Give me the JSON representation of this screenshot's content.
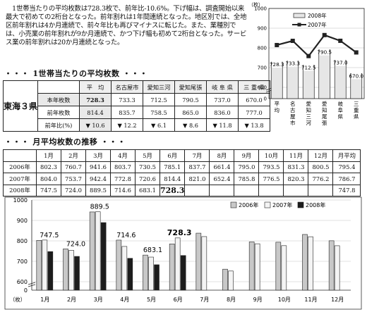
{
  "intro": {
    "text": "　1世帯当たりの平均枚数は728.3枚で、前年比-10.6%。下げ幅は、調査開始以来最大で初めての2桁台となった。前年割れは1年間連続となった。地区別では、全地区前年割れは4か月連続で、前々年比も再びマイナスに転じた。また、業種別では、小売業の前年割れが9か月連続で、かつ下げ幅も初めて2桁台となった。サービス業の前年割れは20か月連続となった。"
  },
  "section1": {
    "dots_left": "・・・",
    "title": "1世帯当たりの平均枚数",
    "dots_right": "・・・"
  },
  "section2": {
    "dots_left": "・・・",
    "title": "月平均枚数の推移",
    "dots_right": "・・・"
  },
  "table1": {
    "pref_label": "東海３県",
    "headers": [
      "平　均",
      "名古屋市",
      "愛知三河",
      "愛知尾張",
      "岐 阜 県",
      "三 重 県"
    ],
    "rows": [
      {
        "label": "本年枚数",
        "values": [
          "728.3",
          "733.3",
          "712.5",
          "790.5",
          "737.0",
          "670.0"
        ]
      },
      {
        "label": "前年枚数",
        "values": [
          "814.4",
          "835.7",
          "758.5",
          "865.0",
          "836.0",
          "777.0"
        ]
      },
      {
        "label": "前年比(%)",
        "values": [
          "▼ 10.6",
          "▼ 12.2",
          "▼ 6.1",
          "▼ 8.6",
          "▼ 11.8",
          "▼ 13.8"
        ]
      }
    ]
  },
  "table2": {
    "headers": [
      "1月",
      "2月",
      "3月",
      "4月",
      "5月",
      "6月",
      "7月",
      "8月",
      "9月",
      "10月",
      "11月",
      "12月",
      "月平均"
    ],
    "rows": [
      {
        "label": "2006年",
        "values": [
          "802.3",
          "760.7",
          "941.6",
          "803.7",
          "730.5",
          "785.1",
          "837.7",
          "661.4",
          "795.0",
          "793.5",
          "831.3",
          "800.5",
          "795.4"
        ]
      },
      {
        "label": "2007年",
        "values": [
          "804.0",
          "753.7",
          "942.4",
          "772.8",
          "720.6",
          "814.4",
          "821.0",
          "652.4",
          "785.8",
          "776.5",
          "820.3",
          "776.2",
          "786.7"
        ]
      },
      {
        "label": "2008年",
        "values": [
          "747.5",
          "724.0",
          "889.5",
          "714.6",
          "683.1",
          "728.3",
          "",
          "",
          "",
          "",
          "",
          "",
          "747.8"
        ]
      }
    ]
  },
  "chart_data": [
    {
      "type": "bar",
      "ylabel": "（枚）",
      "ylim": [
        0,
        1000
      ],
      "yticks": [
        "0",
        "600",
        "700",
        "800",
        "900",
        "1000"
      ],
      "axis_break": true,
      "categories": [
        "平均",
        "名古屋市",
        "愛知三河",
        "愛知尾張",
        "岐阜県",
        "三重県"
      ],
      "series": [
        {
          "name": "2008年",
          "kind": "bar",
          "values": [
            728.3,
            733.3,
            712.5,
            790.5,
            737.0,
            670.0
          ]
        },
        {
          "name": "2007年",
          "kind": "line",
          "values": [
            814.4,
            835.7,
            758.5,
            865.0,
            836.0,
            777.0
          ]
        }
      ],
      "data_labels": [
        "728.3",
        "733.3",
        "712.5",
        "790.5",
        "737.0",
        "670.0"
      ],
      "legend_position": "top-right",
      "colors": {
        "bar": "#e6e6e6",
        "bar_edge": "#222222",
        "line": "#222222"
      }
    },
    {
      "type": "bar",
      "ylabel": "（枚）",
      "ylim": [
        600,
        1000
      ],
      "yticks": [
        "0",
        "600",
        "700",
        "800",
        "900",
        "1000"
      ],
      "axis_break": true,
      "categories": [
        "1月",
        "2月",
        "3月",
        "4月",
        "5月",
        "6月",
        "7月",
        "8月",
        "9月",
        "10月",
        "11月",
        "12月"
      ],
      "series": [
        {
          "name": "2006年",
          "values": [
            802.3,
            760.7,
            941.6,
            803.7,
            730.5,
            785.1,
            837.7,
            661.4,
            795.0,
            793.5,
            831.3,
            800.5
          ]
        },
        {
          "name": "2007年",
          "values": [
            804.0,
            753.7,
            942.4,
            772.8,
            720.6,
            814.4,
            821.0,
            652.4,
            785.8,
            776.5,
            820.3,
            776.2
          ]
        },
        {
          "name": "2008年",
          "values": [
            747.5,
            724.0,
            889.5,
            714.6,
            683.1,
            728.3,
            null,
            null,
            null,
            null,
            null,
            null
          ]
        }
      ],
      "data_labels": [
        "747.5",
        "724.0",
        "889.5",
        "714.6",
        "683.1",
        "728.3"
      ],
      "legend_position": "top-right",
      "grid": true,
      "colors": {
        "s2006": "#c8c8c8",
        "s2007": "#f4f4f4",
        "s2008": "#1c1c1c"
      }
    }
  ]
}
